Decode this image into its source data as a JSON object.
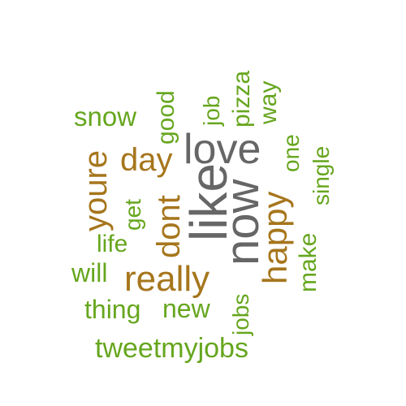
{
  "colors": {
    "gray": "#666666",
    "brown": "#A6761D",
    "green": "#66A61E"
  },
  "words": {
    "like": "like",
    "now": "now",
    "love": "love",
    "really": "really",
    "happy": "happy",
    "youre": "youre",
    "day": "day",
    "dont": "dont",
    "snow": "snow",
    "good": "good",
    "job": "job",
    "pizza": "pizza",
    "way": "way",
    "one": "one",
    "single": "single",
    "get": "get",
    "life": "life",
    "will": "will",
    "make": "make",
    "thing": "thing",
    "new": "new",
    "jobs": "jobs",
    "tweetmyjobs": "tweetmyjobs"
  }
}
